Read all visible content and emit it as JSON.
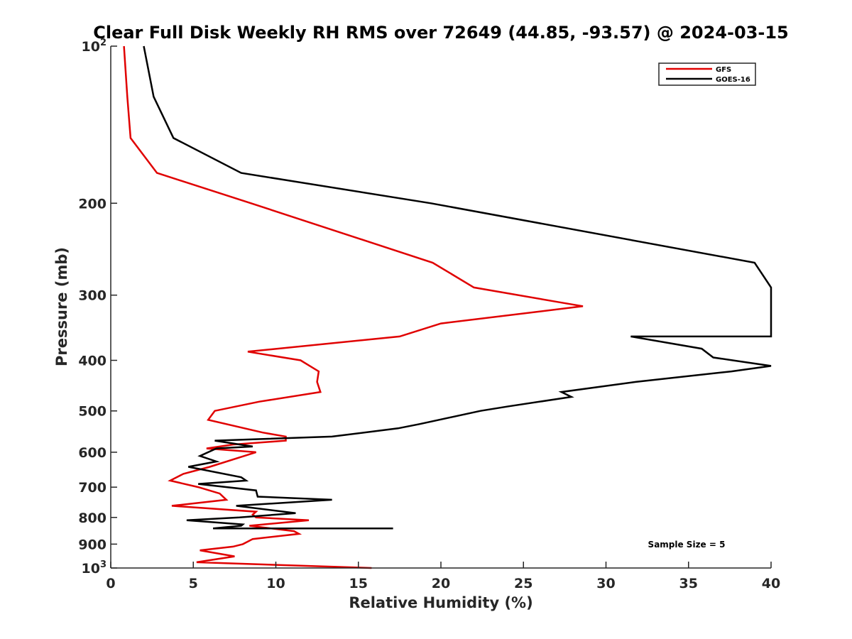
{
  "chart_data": {
    "type": "line",
    "title": "Clear Full Disk Weekly RH RMS over 72649 (44.85, -93.57) @ 2024-03-15",
    "xlabel": "Relative Humidity (%)",
    "ylabel": "Pressure (mb)",
    "xlim": [
      0,
      40
    ],
    "ylim": [
      100,
      1000
    ],
    "yscale": "log",
    "y_reversed": true,
    "grid": false,
    "legend_position": "top-right",
    "x_ticks": [
      0,
      5,
      10,
      15,
      20,
      25,
      30,
      35,
      40
    ],
    "y_ticks": [
      {
        "value": 100,
        "label_base": "10",
        "label_exp": "2"
      },
      {
        "value": 200,
        "label_base": "200",
        "label_exp": ""
      },
      {
        "value": 300,
        "label_base": "300",
        "label_exp": ""
      },
      {
        "value": 400,
        "label_base": "400",
        "label_exp": ""
      },
      {
        "value": 500,
        "label_base": "500",
        "label_exp": ""
      },
      {
        "value": 600,
        "label_base": "600",
        "label_exp": ""
      },
      {
        "value": 700,
        "label_base": "700",
        "label_exp": ""
      },
      {
        "value": 800,
        "label_base": "800",
        "label_exp": ""
      },
      {
        "value": 900,
        "label_base": "900",
        "label_exp": ""
      },
      {
        "value": 1000,
        "label_base": "10",
        "label_exp": "3"
      }
    ],
    "series": [
      {
        "name": "GFS",
        "color": "#e00000",
        "points": [
          [
            0.8,
            100
          ],
          [
            1.0,
            125
          ],
          [
            1.2,
            150
          ],
          [
            2.8,
            175
          ],
          [
            8.5,
            200
          ],
          [
            19.5,
            260
          ],
          [
            22.0,
            290
          ],
          [
            27.3,
            310
          ],
          [
            28.6,
            315
          ],
          [
            20.0,
            340
          ],
          [
            17.5,
            360
          ],
          [
            8.3,
            385
          ],
          [
            11.5,
            400
          ],
          [
            12.6,
            420
          ],
          [
            12.5,
            440
          ],
          [
            12.7,
            460
          ],
          [
            9.0,
            480
          ],
          [
            6.3,
            500
          ],
          [
            5.9,
            520
          ],
          [
            9.2,
            550
          ],
          [
            10.6,
            560
          ],
          [
            10.6,
            570
          ],
          [
            7.4,
            580
          ],
          [
            5.8,
            590
          ],
          [
            8.8,
            600
          ],
          [
            6.0,
            640
          ],
          [
            4.4,
            660
          ],
          [
            3.6,
            680
          ],
          [
            5.3,
            700
          ],
          [
            6.6,
            720
          ],
          [
            7.0,
            740
          ],
          [
            3.7,
            760
          ],
          [
            8.8,
            780
          ],
          [
            8.6,
            790
          ],
          [
            8.8,
            800
          ],
          [
            12.0,
            810
          ],
          [
            8.4,
            830
          ],
          [
            11.1,
            850
          ],
          [
            11.4,
            860
          ],
          [
            8.6,
            880
          ],
          [
            8.0,
            900
          ],
          [
            7.4,
            910
          ],
          [
            5.4,
            925
          ],
          [
            7.5,
            950
          ],
          [
            5.2,
            975
          ],
          [
            15.8,
            1000
          ]
        ]
      },
      {
        "name": "GOES-16",
        "color": "#000000",
        "points": [
          [
            2.0,
            100
          ],
          [
            2.6,
            125
          ],
          [
            3.8,
            150
          ],
          [
            7.9,
            175
          ],
          [
            19.4,
            200
          ],
          [
            39.0,
            260
          ],
          [
            40.0,
            290
          ],
          [
            40.0,
            360
          ],
          [
            31.5,
            360
          ],
          [
            35.8,
            380
          ],
          [
            36.5,
            395
          ],
          [
            40.0,
            410
          ],
          [
            37.6,
            420
          ],
          [
            31.8,
            440
          ],
          [
            27.3,
            460
          ],
          [
            27.9,
            470
          ],
          [
            24.1,
            490
          ],
          [
            22.4,
            500
          ],
          [
            18.7,
            530
          ],
          [
            17.4,
            540
          ],
          [
            13.4,
            560
          ],
          [
            6.3,
            570
          ],
          [
            8.6,
            585
          ],
          [
            6.4,
            590
          ],
          [
            5.4,
            610
          ],
          [
            6.4,
            625
          ],
          [
            4.7,
            640
          ],
          [
            7.9,
            670
          ],
          [
            8.2,
            680
          ],
          [
            5.3,
            690
          ],
          [
            8.8,
            710
          ],
          [
            8.9,
            730
          ],
          [
            13.4,
            740
          ],
          [
            7.6,
            760
          ],
          [
            10.5,
            780
          ],
          [
            11.2,
            785
          ],
          [
            7.8,
            800
          ],
          [
            4.6,
            810
          ],
          [
            8.0,
            825
          ],
          [
            7.9,
            830
          ],
          [
            6.2,
            840
          ],
          [
            17.1,
            840
          ]
        ]
      }
    ],
    "legend": [
      "GFS",
      "GOES-16"
    ],
    "annotation": "Sample Size = 5"
  }
}
